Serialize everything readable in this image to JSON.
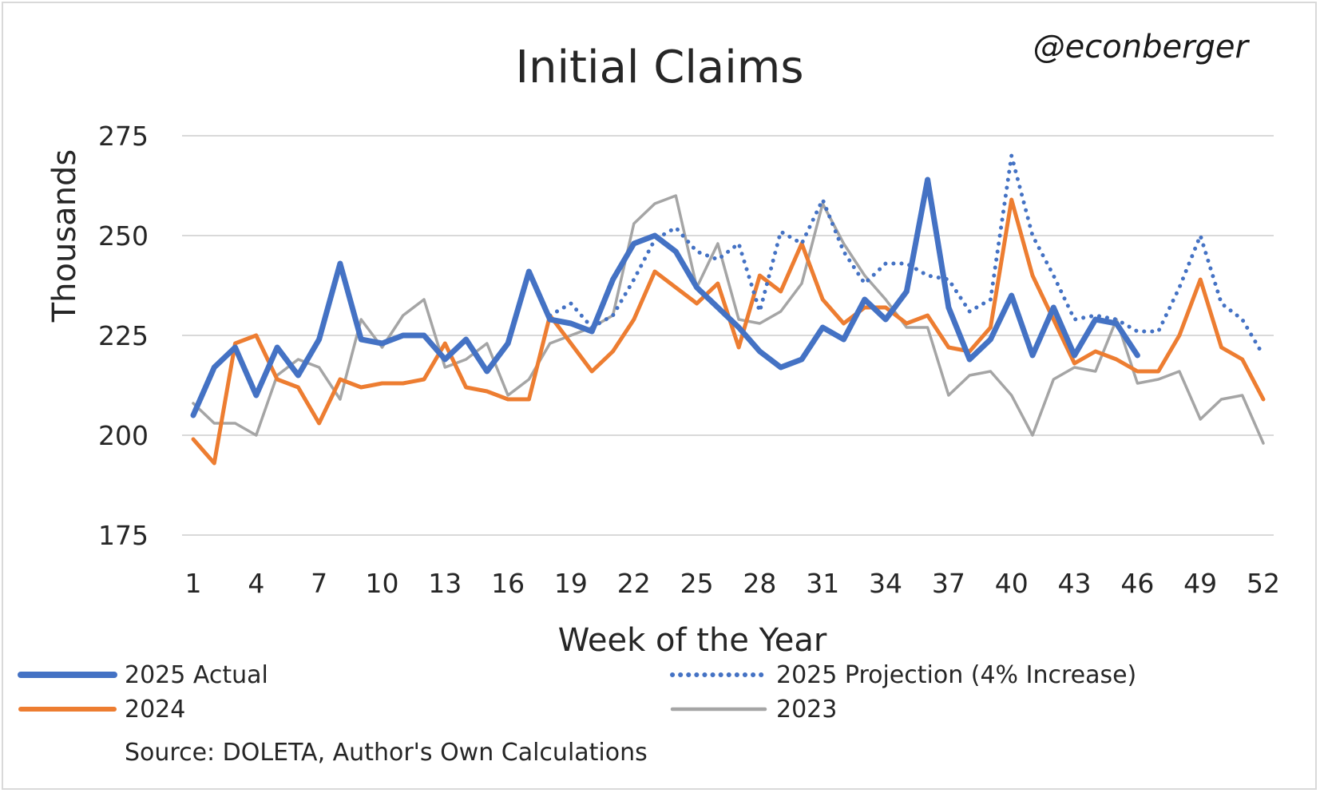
{
  "handle": "@econberger",
  "chart_data": {
    "type": "line",
    "title": "Initial Claims",
    "xlabel": "Week of the Year",
    "ylabel": "Thousands",
    "xlim": [
      1,
      52
    ],
    "ylim": [
      175,
      275
    ],
    "yticks": [
      "175",
      "200",
      "225",
      "250",
      "275"
    ],
    "xticks": [
      "1",
      "4",
      "7",
      "10",
      "13",
      "16",
      "19",
      "22",
      "25",
      "28",
      "31",
      "34",
      "37",
      "40",
      "43",
      "46",
      "49",
      "52"
    ],
    "grid": "horizontal",
    "legend_position": "bottom",
    "source": "Source: DOLETA, Author's Own Calculations",
    "series": [
      {
        "name": "2025 Actual",
        "color": "#4472c4",
        "style": "solid-thick",
        "start_week": 1,
        "values": [
          205,
          217,
          222,
          210,
          222,
          215,
          224,
          243,
          224,
          223,
          225,
          225,
          219,
          224,
          216,
          223,
          241,
          229,
          228,
          226,
          239,
          248,
          250,
          246,
          237,
          232,
          227,
          221,
          217,
          219,
          227,
          224,
          234,
          229,
          236,
          264,
          232,
          219,
          224,
          235,
          220,
          232,
          220,
          229,
          228,
          220
        ]
      },
      {
        "name": "2025 Projection (4% Increase)",
        "color": "#4472c4",
        "style": "dotted",
        "start_week": 18,
        "values": [
          230,
          233,
          227,
          230,
          239,
          249,
          252,
          246,
          244,
          248,
          231,
          251,
          248,
          259,
          246,
          238,
          243,
          243,
          240,
          239,
          231,
          234,
          270,
          250,
          240,
          229,
          230,
          229,
          226,
          226,
          237,
          250,
          233,
          229,
          220
        ]
      },
      {
        "name": "2024",
        "color": "#ed7d31",
        "style": "solid",
        "start_week": 1,
        "values": [
          199,
          193,
          223,
          225,
          214,
          212,
          203,
          214,
          212,
          213,
          213,
          214,
          223,
          212,
          211,
          209,
          209,
          230,
          223,
          216,
          221,
          229,
          241,
          237,
          233,
          238,
          222,
          240,
          236,
          248,
          234,
          228,
          232,
          232,
          228,
          230,
          222,
          221,
          227,
          259,
          240,
          229,
          218,
          221,
          219,
          216,
          216,
          225,
          239,
          222,
          219,
          209
        ]
      },
      {
        "name": "2023",
        "color": "#a5a5a5",
        "style": "solid-thin",
        "start_week": 1,
        "values": [
          208,
          203,
          203,
          200,
          215,
          219,
          217,
          209,
          229,
          222,
          230,
          234,
          217,
          219,
          223,
          210,
          214,
          223,
          225,
          227,
          230,
          253,
          258,
          260,
          237,
          248,
          229,
          228,
          231,
          238,
          258,
          248,
          240,
          234,
          227,
          227,
          210,
          215,
          216,
          210,
          200,
          214,
          217,
          216,
          229,
          213,
          214,
          216,
          204,
          209,
          210,
          198
        ]
      }
    ]
  }
}
